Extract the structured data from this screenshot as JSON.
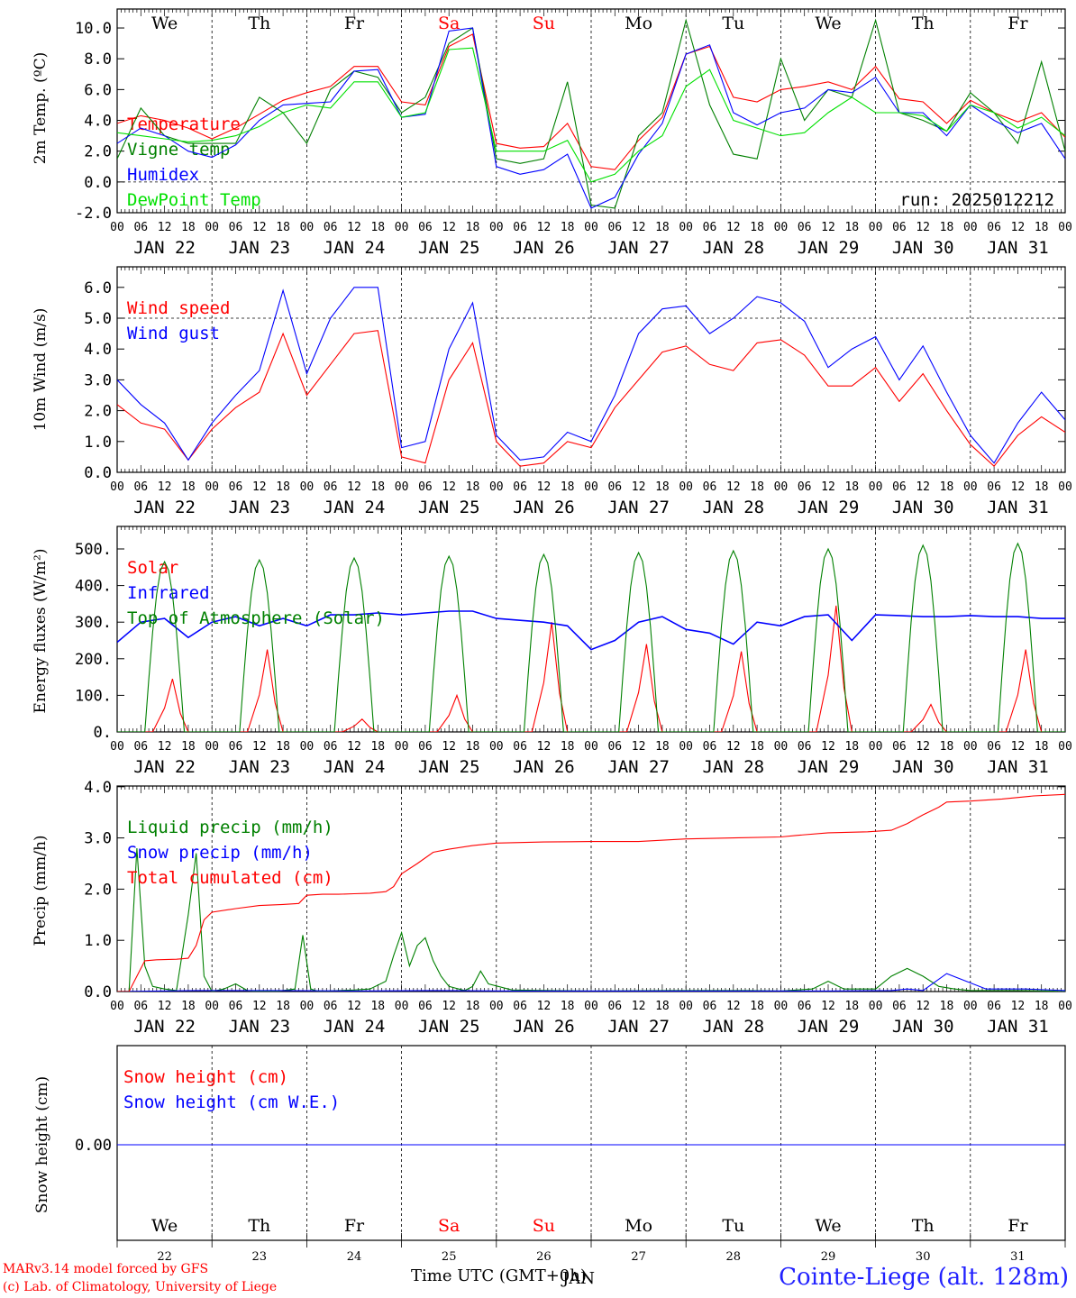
{
  "station": "Cointe-Liege (alt. 128m)",
  "run_label": "run: 2025012212",
  "credits": [
    "MARv3.14 model forced by GFS",
    "(c) Lab. of Climatology, University of Liege"
  ],
  "x_axis_label": "Time UTC (GMT+0h)",
  "x_axis_overlay": "JAN",
  "dates": [
    "JAN 22",
    "JAN 23",
    "JAN 24",
    "JAN 25",
    "JAN 26",
    "JAN 27",
    "JAN 28",
    "JAN 29",
    "JAN 30",
    "JAN 31"
  ],
  "weekdays": [
    "We",
    "Th",
    "Fr",
    "Sa",
    "Su",
    "Mo",
    "Tu",
    "We",
    "Th",
    "Fr"
  ],
  "weekend_days": [
    3,
    4
  ],
  "day_numbers": [
    "22",
    "23",
    "24",
    "25",
    "26",
    "27",
    "28",
    "29",
    "30",
    "31"
  ],
  "hour_labels": [
    "00",
    "06",
    "12",
    "18"
  ],
  "colors": {
    "red": "#ff0000",
    "green": "#008000",
    "blue": "#0000ff",
    "lightgreen": "#00e000",
    "brown": "#8b4513"
  },
  "chart_data": [
    {
      "type": "line",
      "id": "temp",
      "ylabel": "2m Temp. (ºC)",
      "ylim": [
        -2,
        11
      ],
      "yticks": [
        "-2.0",
        "0.0",
        "2.0",
        "4.0",
        "6.0",
        "8.0",
        "10.0"
      ],
      "dashed_y": 0,
      "x_unit": "hours since JAN 22 00 UTC",
      "series": [
        {
          "name": "Temperature",
          "color": "#ff0000",
          "x": [
            0,
            6,
            12,
            18,
            24,
            30,
            36,
            42,
            48,
            54,
            60,
            66,
            72,
            78,
            84,
            90,
            96,
            102,
            108,
            114,
            120,
            126,
            132,
            138,
            144,
            150,
            156,
            162,
            168,
            174,
            180,
            186,
            192,
            198,
            204,
            210,
            216,
            222,
            228,
            234,
            240
          ],
          "y": [
            3.8,
            4.3,
            4,
            3.5,
            2.8,
            3.5,
            4.4,
            5.3,
            5.8,
            6.2,
            7.5,
            7.5,
            5.2,
            5,
            8.8,
            9.6,
            2.5,
            2.2,
            2.3,
            3.8,
            1,
            0.8,
            2.7,
            4.2,
            8.3,
            8.8,
            5.5,
            5.2,
            6,
            6.2,
            6.5,
            6,
            7.5,
            5.4,
            5.2,
            3.8,
            5.3,
            4.5,
            3.9,
            4.5,
            2.9
          ]
        },
        {
          "name": "Vigne temp",
          "color": "#008000",
          "x": [
            0,
            6,
            12,
            18,
            24,
            30,
            36,
            42,
            48,
            54,
            60,
            66,
            72,
            78,
            84,
            90,
            96,
            102,
            108,
            114,
            120,
            126,
            132,
            138,
            144,
            150,
            156,
            162,
            168,
            174,
            180,
            186,
            192,
            198,
            204,
            210,
            216,
            222,
            228,
            234,
            240
          ],
          "y": [
            1.5,
            4.8,
            3,
            2.5,
            2.5,
            2.5,
            5.5,
            4.5,
            2.5,
            6,
            7.2,
            6.8,
            4.5,
            5.5,
            9,
            10,
            1.5,
            1.2,
            1.5,
            6.5,
            -1.5,
            -1.7,
            3,
            4.5,
            10.5,
            5,
            1.8,
            1.5,
            8,
            4,
            6,
            5.5,
            10.5,
            4.5,
            4,
            3.3,
            5.8,
            4.5,
            2.5,
            7.8,
            2
          ]
        },
        {
          "name": "Humidex",
          "color": "#0000ff",
          "x": [
            0,
            6,
            12,
            18,
            24,
            30,
            36,
            42,
            48,
            54,
            60,
            66,
            72,
            78,
            84,
            90,
            96,
            102,
            108,
            114,
            120,
            126,
            132,
            138,
            144,
            150,
            156,
            162,
            168,
            174,
            180,
            186,
            192,
            198,
            204,
            210,
            216,
            222,
            228,
            234,
            240
          ],
          "y": [
            2.5,
            3.5,
            3,
            2,
            1.6,
            2.4,
            4,
            5,
            5.1,
            5.2,
            7.2,
            7.3,
            4.2,
            4.4,
            9.8,
            10,
            1,
            0.5,
            0.8,
            1.8,
            -1.7,
            -1,
            1.8,
            3.8,
            8.3,
            8.9,
            4.5,
            3.7,
            4.5,
            4.8,
            6,
            5.8,
            6.8,
            4.5,
            4.5,
            3,
            5,
            4,
            3.2,
            3.8,
            1.5
          ]
        },
        {
          "name": "DewPoint Temp",
          "color": "#00e000",
          "x": [
            0,
            6,
            12,
            18,
            24,
            30,
            36,
            42,
            48,
            54,
            60,
            66,
            72,
            78,
            84,
            90,
            96,
            102,
            108,
            114,
            120,
            126,
            132,
            138,
            144,
            150,
            156,
            162,
            168,
            174,
            180,
            186,
            192,
            198,
            204,
            210,
            216,
            222,
            228,
            234,
            240
          ],
          "y": [
            3.2,
            3,
            2.8,
            2.6,
            2.7,
            3,
            3.6,
            4.5,
            5,
            4.8,
            6.5,
            6.5,
            4.2,
            4.5,
            8.6,
            8.7,
            2,
            2,
            2,
            2.7,
            0,
            0.5,
            2,
            3,
            6.2,
            7.3,
            4,
            3.5,
            3,
            3.2,
            4.5,
            5.5,
            4.5,
            4.5,
            4.3,
            3.3,
            5,
            4.5,
            3.5,
            4.2,
            3
          ]
        }
      ]
    },
    {
      "type": "line",
      "id": "wind",
      "ylabel": "10m Wind (m/s)",
      "ylim": [
        0,
        6.5
      ],
      "yticks": [
        "0.0",
        "1.0",
        "2.0",
        "3.0",
        "4.0",
        "5.0",
        "6.0"
      ],
      "dashed_y": 5,
      "x_unit": "hours since JAN 22 00 UTC",
      "series": [
        {
          "name": "Wind speed",
          "color": "#ff0000",
          "x": [
            0,
            6,
            12,
            18,
            24,
            30,
            36,
            42,
            48,
            54,
            60,
            66,
            72,
            78,
            84,
            90,
            96,
            102,
            108,
            114,
            120,
            126,
            132,
            138,
            144,
            150,
            156,
            162,
            168,
            174,
            180,
            186,
            192,
            198,
            204,
            210,
            216,
            222,
            228,
            234,
            240
          ],
          "y": [
            2.2,
            1.6,
            1.4,
            0.4,
            1.4,
            2.1,
            2.6,
            4.5,
            2.5,
            3.5,
            4.5,
            4.6,
            0.5,
            0.3,
            3,
            4.2,
            1,
            0.2,
            0.3,
            1,
            0.8,
            2.1,
            3,
            3.9,
            4.1,
            3.5,
            3.3,
            4.2,
            4.3,
            3.8,
            2.8,
            2.8,
            3.4,
            2.3,
            3.2,
            2,
            0.9,
            0.2,
            1.2,
            1.8,
            1.3
          ]
        },
        {
          "name": "Wind gust",
          "color": "#0000ff",
          "x": [
            0,
            6,
            12,
            18,
            24,
            30,
            36,
            42,
            48,
            54,
            60,
            66,
            72,
            78,
            84,
            90,
            96,
            102,
            108,
            114,
            120,
            126,
            132,
            138,
            144,
            150,
            156,
            162,
            168,
            174,
            180,
            186,
            192,
            198,
            204,
            210,
            216,
            222,
            228,
            234,
            240
          ],
          "y": [
            3,
            2.2,
            1.6,
            0.4,
            1.6,
            2.5,
            3.3,
            5.9,
            3.2,
            5,
            6,
            6,
            0.8,
            1,
            4,
            5.5,
            1.2,
            0.4,
            0.5,
            1.3,
            1,
            2.5,
            4.5,
            5.3,
            5.4,
            4.5,
            5,
            5.7,
            5.5,
            4.9,
            3.4,
            4,
            4.4,
            3,
            4.1,
            2.6,
            1.2,
            0.3,
            1.6,
            2.6,
            1.7
          ]
        }
      ]
    },
    {
      "type": "line",
      "id": "energy",
      "ylabel": "Energy fluxes (W/m²)",
      "ylim": [
        0,
        550
      ],
      "yticks": [
        "0.",
        "100.",
        "200.",
        "300.",
        "400.",
        "500."
      ],
      "x_unit": "hours since JAN 22 00 UTC",
      "series": [
        {
          "name": "Solar",
          "color": "#ff0000",
          "daily_peak_hour": [
            14,
            14,
            14,
            14,
            14,
            14,
            14,
            14,
            14,
            14
          ],
          "daily_peak_value": [
            145,
            225,
            35,
            100,
            300,
            240,
            220,
            345,
            75,
            225
          ]
        },
        {
          "name": "Infrared",
          "color": "#0000ff",
          "x": [
            0,
            6,
            12,
            18,
            24,
            30,
            36,
            42,
            48,
            54,
            60,
            66,
            72,
            78,
            84,
            90,
            96,
            102,
            108,
            114,
            120,
            126,
            132,
            138,
            144,
            150,
            156,
            162,
            168,
            174,
            180,
            186,
            192,
            198,
            204,
            210,
            216,
            222,
            228,
            234,
            240
          ],
          "y": [
            245,
            300,
            310,
            258,
            300,
            315,
            290,
            310,
            290,
            320,
            320,
            325,
            320,
            325,
            330,
            330,
            310,
            305,
            300,
            290,
            225,
            250,
            300,
            315,
            280,
            270,
            240,
            300,
            290,
            315,
            320,
            250,
            320,
            318,
            315,
            315,
            318,
            315,
            315,
            310,
            310
          ]
        },
        {
          "name": "Top of Atmosphere (Solar)",
          "color": "#008000",
          "daily_peak_hour": [
            12,
            12,
            12,
            12,
            12,
            12,
            12,
            12,
            12,
            12
          ],
          "daily_peak_value": [
            465,
            470,
            475,
            480,
            485,
            490,
            495,
            500,
            510,
            515
          ],
          "sunrise_hour": 8,
          "sunset_hour": 16
        }
      ]
    },
    {
      "type": "line",
      "id": "precip",
      "ylabel": "Precip (mm/h)",
      "ylim": [
        0,
        4
      ],
      "yticks": [
        "0.0",
        "1.0",
        "2.0",
        "3.0",
        "4.0"
      ],
      "x_unit": "hours since JAN 22 00 UTC",
      "series": [
        {
          "name": "Liquid precip (mm/h)",
          "color": "#008000",
          "x": [
            0,
            3,
            5,
            7,
            9,
            12,
            15,
            18,
            20,
            22,
            24,
            27,
            30,
            33,
            36,
            40,
            45,
            47,
            49,
            51,
            56,
            60,
            64,
            68,
            70,
            72,
            74,
            76,
            78,
            80,
            82,
            84,
            88,
            90,
            92,
            94,
            100,
            110,
            120,
            140,
            160,
            168,
            176,
            180,
            184,
            192,
            196,
            200,
            204,
            208,
            212,
            216,
            220,
            228,
            236,
            240
          ],
          "y": [
            0,
            0,
            2.8,
            0.5,
            0.1,
            0.05,
            0.02,
            1.5,
            2.7,
            0.3,
            0,
            0.05,
            0.15,
            0.02,
            0,
            0,
            0.05,
            1.1,
            0.05,
            0,
            0.02,
            0.03,
            0.05,
            0.2,
            0.7,
            1.15,
            0.5,
            0.9,
            1.05,
            0.6,
            0.3,
            0.1,
            0.02,
            0.1,
            0.4,
            0.15,
            0.03,
            0.02,
            0.01,
            0.02,
            0.02,
            0.01,
            0.05,
            0.2,
            0.05,
            0.05,
            0.3,
            0.45,
            0.3,
            0.1,
            0.05,
            0.02,
            0.02,
            0.02,
            0.01,
            0
          ]
        },
        {
          "name": "Snow precip (mm/h)",
          "color": "#0000ff",
          "x": [
            0,
            20,
            40,
            60,
            80,
            100,
            120,
            140,
            160,
            180,
            196,
            200,
            204,
            210,
            220,
            230,
            240
          ],
          "y": [
            0,
            0.02,
            0.02,
            0.01,
            0.02,
            0.01,
            0.01,
            0.01,
            0.01,
            0.01,
            0.02,
            0.05,
            0.02,
            0.35,
            0.05,
            0.05,
            0.02
          ]
        },
        {
          "name": "Total cumulated (cm)",
          "color": "#ff0000",
          "x": [
            0,
            3,
            5,
            7,
            10,
            15,
            18,
            20,
            22,
            24,
            30,
            36,
            42,
            46,
            48,
            52,
            56,
            60,
            64,
            68,
            70,
            72,
            76,
            80,
            84,
            90,
            96,
            108,
            120,
            132,
            144,
            156,
            168,
            172,
            180,
            190,
            196,
            200,
            204,
            208,
            210,
            216,
            224,
            232,
            240
          ],
          "y": [
            0,
            0,
            0.3,
            0.6,
            0.62,
            0.63,
            0.65,
            0.9,
            1.4,
            1.55,
            1.62,
            1.68,
            1.7,
            1.72,
            1.88,
            1.9,
            1.9,
            1.91,
            1.92,
            1.95,
            2.05,
            2.3,
            2.5,
            2.72,
            2.78,
            2.85,
            2.9,
            2.92,
            2.93,
            2.93,
            2.98,
            3.0,
            3.02,
            3.05,
            3.1,
            3.12,
            3.15,
            3.28,
            3.45,
            3.6,
            3.7,
            3.72,
            3.76,
            3.82,
            3.85
          ]
        }
      ]
    },
    {
      "type": "line",
      "id": "snow",
      "ylabel": "Snow height (cm)",
      "yticks": [
        "0.00"
      ],
      "x_unit": "hours since JAN 22 00 UTC",
      "series": [
        {
          "name": "Snow height (cm)",
          "color": "#ff0000",
          "x": [
            0,
            240
          ],
          "y": [
            0,
            0
          ]
        },
        {
          "name": "Snow height (cm W.E.)",
          "color": "#0000ff",
          "x": [
            0,
            240
          ],
          "y": [
            0,
            0
          ]
        }
      ]
    }
  ]
}
